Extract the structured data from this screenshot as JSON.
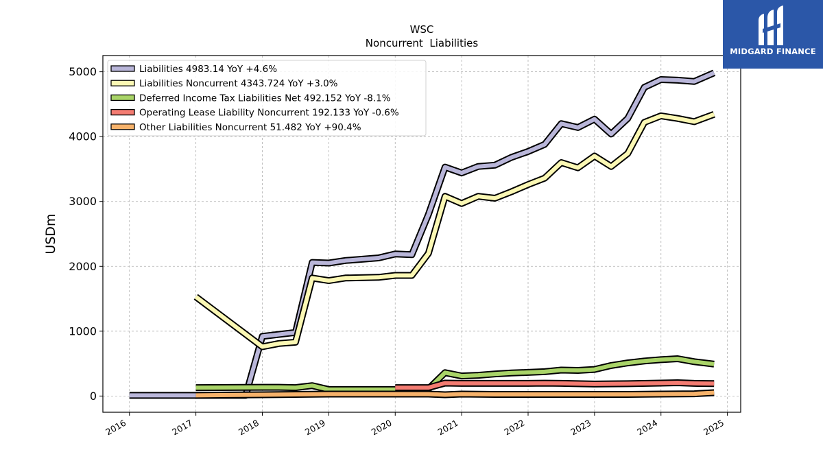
{
  "brand": {
    "name": "MIDGARD FINANCE",
    "bg": "#2b57a8"
  },
  "chart_data": {
    "type": "line",
    "title": "WSC",
    "subtitle": "Noncurrent  Liabilities",
    "xlabel": "",
    "ylabel": "USDm",
    "xlim": [
      2015.6,
      2025.2
    ],
    "ylim": [
      -250,
      5250
    ],
    "xticks": [
      2016,
      2017,
      2018,
      2019,
      2020,
      2021,
      2022,
      2023,
      2024,
      2025
    ],
    "yticks": [
      0,
      1000,
      2000,
      3000,
      4000,
      5000
    ],
    "grid": true,
    "legend_position": "top-left",
    "series": [
      {
        "name": "Liabilities",
        "legend": "Liabilities  4983.14 YoY +4.6%",
        "color": "#b9b6d9",
        "points": [
          [
            2016.0,
            10
          ],
          [
            2017.0,
            10
          ],
          [
            2017.75,
            10
          ],
          [
            2018.0,
            920
          ],
          [
            2018.5,
            980
          ],
          [
            2018.75,
            2060
          ],
          [
            2019.0,
            2050
          ],
          [
            2019.25,
            2090
          ],
          [
            2019.75,
            2130
          ],
          [
            2020.0,
            2190
          ],
          [
            2020.25,
            2180
          ],
          [
            2020.5,
            2800
          ],
          [
            2020.75,
            3530
          ],
          [
            2021.0,
            3440
          ],
          [
            2021.25,
            3540
          ],
          [
            2021.5,
            3560
          ],
          [
            2021.75,
            3680
          ],
          [
            2022.0,
            3770
          ],
          [
            2022.25,
            3880
          ],
          [
            2022.5,
            4200
          ],
          [
            2022.75,
            4140
          ],
          [
            2023.0,
            4270
          ],
          [
            2023.25,
            4040
          ],
          [
            2023.5,
            4280
          ],
          [
            2023.75,
            4760
          ],
          [
            2024.0,
            4880
          ],
          [
            2024.25,
            4870
          ],
          [
            2024.5,
            4850
          ],
          [
            2024.8,
            4983
          ]
        ]
      },
      {
        "name": "Liabilities Noncurrent",
        "legend": "Liabilities Noncurrent  4343.724 YoY +3.0%",
        "color": "#fbf8b4",
        "points": [
          [
            2017.0,
            1530
          ],
          [
            2018.0,
            760
          ],
          [
            2018.25,
            810
          ],
          [
            2018.5,
            830
          ],
          [
            2018.75,
            1820
          ],
          [
            2019.0,
            1780
          ],
          [
            2019.25,
            1820
          ],
          [
            2019.75,
            1830
          ],
          [
            2020.0,
            1860
          ],
          [
            2020.25,
            1860
          ],
          [
            2020.5,
            2200
          ],
          [
            2020.75,
            3080
          ],
          [
            2021.0,
            2970
          ],
          [
            2021.25,
            3080
          ],
          [
            2021.5,
            3050
          ],
          [
            2021.75,
            3150
          ],
          [
            2022.0,
            3260
          ],
          [
            2022.25,
            3360
          ],
          [
            2022.5,
            3600
          ],
          [
            2022.75,
            3520
          ],
          [
            2023.0,
            3700
          ],
          [
            2023.25,
            3540
          ],
          [
            2023.5,
            3740
          ],
          [
            2023.75,
            4220
          ],
          [
            2024.0,
            4320
          ],
          [
            2024.25,
            4280
          ],
          [
            2024.5,
            4230
          ],
          [
            2024.8,
            4344
          ]
        ]
      },
      {
        "name": "Deferred Income Tax Liabilities Net",
        "legend": "Deferred Income Tax Liabilities Net  492.152 YoY -8.1%",
        "color": "#a9d468",
        "points": [
          [
            2017.0,
            130
          ],
          [
            2018.0,
            135
          ],
          [
            2018.25,
            135
          ],
          [
            2018.5,
            130
          ],
          [
            2018.75,
            160
          ],
          [
            2019.0,
            100
          ],
          [
            2019.5,
            100
          ],
          [
            2020.0,
            100
          ],
          [
            2020.5,
            110
          ],
          [
            2020.75,
            360
          ],
          [
            2021.0,
            310
          ],
          [
            2021.25,
            320
          ],
          [
            2021.5,
            340
          ],
          [
            2021.75,
            355
          ],
          [
            2022.0,
            365
          ],
          [
            2022.25,
            375
          ],
          [
            2022.5,
            400
          ],
          [
            2022.75,
            395
          ],
          [
            2023.0,
            410
          ],
          [
            2023.25,
            470
          ],
          [
            2023.5,
            510
          ],
          [
            2023.75,
            540
          ],
          [
            2024.0,
            560
          ],
          [
            2024.25,
            575
          ],
          [
            2024.5,
            530
          ],
          [
            2024.8,
            492
          ]
        ]
      },
      {
        "name": "Operating Lease Liability Noncurrent",
        "legend": "Operating Lease Liability Noncurrent  192.133 YoY -0.6%",
        "color": "#f47c72",
        "points": [
          [
            2020.0,
            130
          ],
          [
            2020.25,
            130
          ],
          [
            2020.5,
            130
          ],
          [
            2020.75,
            200
          ],
          [
            2021.0,
            195
          ],
          [
            2021.5,
            195
          ],
          [
            2022.0,
            195
          ],
          [
            2022.25,
            198
          ],
          [
            2022.5,
            195
          ],
          [
            2023.0,
            185
          ],
          [
            2023.5,
            190
          ],
          [
            2024.0,
            200
          ],
          [
            2024.25,
            205
          ],
          [
            2024.5,
            195
          ],
          [
            2024.8,
            192
          ]
        ]
      },
      {
        "name": "Other Liabilities Noncurrent",
        "legend": "Other Liabilities Noncurrent  51.482 YoY +90.4%",
        "color": "#f6b26b",
        "points": [
          [
            2017.0,
            10
          ],
          [
            2017.5,
            15
          ],
          [
            2018.0,
            20
          ],
          [
            2018.5,
            25
          ],
          [
            2019.0,
            30
          ],
          [
            2019.5,
            30
          ],
          [
            2020.0,
            30
          ],
          [
            2020.5,
            30
          ],
          [
            2020.75,
            20
          ],
          [
            2021.0,
            30
          ],
          [
            2021.5,
            25
          ],
          [
            2022.0,
            25
          ],
          [
            2022.5,
            25
          ],
          [
            2023.0,
            25
          ],
          [
            2023.5,
            25
          ],
          [
            2024.0,
            30
          ],
          [
            2024.5,
            35
          ],
          [
            2024.8,
            51
          ]
        ]
      }
    ]
  }
}
